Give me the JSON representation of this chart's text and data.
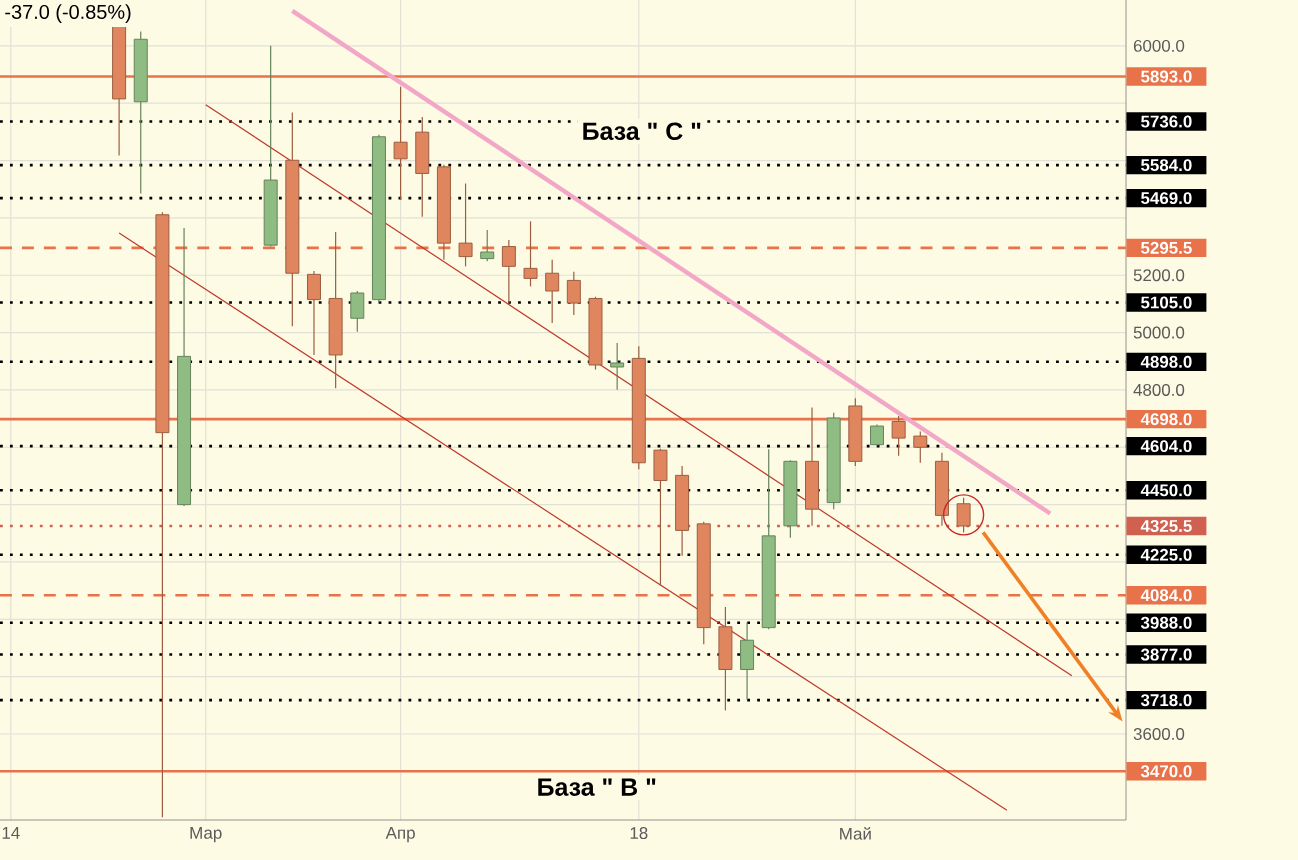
{
  "chart_data": {
    "type": "candlestick",
    "categories": [
      "14",
      null,
      null,
      null,
      null,
      null,
      null,
      null,
      null,
      "Мар",
      null,
      null,
      null,
      null,
      null,
      null,
      null,
      null,
      "Апр",
      null,
      null,
      null,
      null,
      null,
      null,
      null,
      null,
      null,
      null,
      "18",
      null,
      null,
      null,
      null,
      null,
      null,
      null,
      null,
      null,
      "Май",
      null,
      null,
      null,
      null,
      null,
      null,
      null,
      null,
      null,
      null,
      null,
      null
    ],
    "ohlc": [
      null,
      null,
      null,
      null,
      null,
      [
        6150,
        6150,
        5618,
        5815
      ],
      [
        5805,
        6050,
        5485,
        6023
      ],
      [
        5411,
        5420,
        3310,
        4651
      ],
      [
        4400,
        5365,
        4395,
        4917
      ],
      null,
      null,
      null,
      [
        5305,
        6000,
        5300,
        5532
      ],
      [
        5601,
        5768,
        5022,
        5207
      ],
      [
        5203,
        5215,
        4922,
        5115
      ],
      [
        5119,
        5351,
        4806,
        4922
      ],
      [
        5050,
        5145,
        5003,
        5138
      ],
      [
        5115,
        5690,
        5105,
        5683
      ],
      [
        5664,
        5857,
        5462,
        5606
      ],
      [
        5699,
        5752,
        5404,
        5555
      ],
      [
        5578,
        5585,
        5254,
        5312
      ],
      [
        5312,
        5520,
        5231,
        5265
      ],
      [
        5258,
        5358,
        5249,
        5281
      ],
      [
        5300,
        5323,
        5103,
        5231
      ],
      [
        5224,
        5388,
        5161,
        5189
      ],
      [
        5207,
        5254,
        5033,
        5145
      ],
      [
        5182,
        5212,
        5061,
        5103
      ],
      [
        5119,
        5125,
        4871,
        4887
      ],
      [
        4880,
        4964,
        4801,
        4894
      ],
      [
        4910,
        4952,
        4523,
        4546
      ],
      [
        4590,
        4595,
        4117,
        4484
      ],
      [
        4502,
        4535,
        4222,
        4310
      ],
      [
        4333,
        4340,
        3913,
        3971
      ],
      [
        3974,
        4043,
        3682,
        3825
      ],
      [
        3825,
        3990,
        3719,
        3927
      ],
      [
        3971,
        4593,
        3965,
        4291
      ],
      [
        4326,
        4555,
        4284,
        4551
      ],
      [
        4551,
        4739,
        4326,
        4384
      ],
      [
        4407,
        4720,
        4384,
        4702
      ],
      [
        4744,
        4771,
        4535,
        4551
      ],
      [
        4609,
        4679,
        4605,
        4674
      ],
      [
        4690,
        4709,
        4570,
        4632
      ],
      [
        4639,
        4655,
        4546,
        4600
      ],
      [
        4551,
        4581,
        4326,
        4362.5
      ],
      [
        4403,
        4424,
        4303,
        4325.5
      ],
      null,
      null,
      null,
      null,
      null,
      null,
      null
    ],
    "colors": [
      null,
      null,
      null,
      null,
      null,
      "#e0865e",
      "#8fbc82",
      "#e0865e",
      "#8fbc82",
      null,
      null,
      null,
      "#8fbc82",
      "#e0865e",
      "#e0865e",
      "#e0865e",
      "#8fbc82",
      "#8fbc82",
      "#e0865e",
      "#e0865e",
      "#e0865e",
      "#e0865e",
      "#8fbc82",
      "#e0865e",
      "#e0865e",
      "#e0865e",
      "#e0865e",
      "#e0865e",
      "#8fbc82",
      "#e0865e",
      "#e0865e",
      "#e0865e",
      "#e0865e",
      "#e0865e",
      "#8fbc82",
      "#8fbc82",
      "#8fbc82",
      "#e0865e",
      "#8fbc82",
      "#e0865e",
      "#8fbc82",
      "#e0865e",
      "#e0865e",
      "#e0865e",
      "#e0865e",
      null,
      null,
      null,
      null,
      null,
      null,
      null
    ],
    "series": [
      {
        "type": "line",
        "values": [
          null,
          null,
          null,
          null,
          null,
          null,
          null,
          null,
          null,
          null,
          null,
          null,
          null,
          6122,
          null,
          null,
          null,
          null,
          null,
          null,
          null,
          null,
          null,
          null,
          null,
          null,
          null,
          null,
          null,
          null,
          null,
          null,
          null,
          null,
          null,
          null,
          null,
          null,
          null,
          null,
          null,
          null,
          null,
          null,
          null,
          null,
          null,
          null,
          4369,
          null,
          null,
          null
        ],
        "color": "#f2a7c6"
      },
      {
        "type": "line",
        "values": [
          null,
          null,
          null,
          null,
          null,
          null,
          null,
          null,
          null,
          5795,
          null,
          null,
          null,
          null,
          null,
          null,
          null,
          null,
          null,
          null,
          null,
          null,
          null,
          null,
          null,
          null,
          null,
          null,
          null,
          null,
          null,
          null,
          null,
          null,
          null,
          null,
          null,
          null,
          null,
          null,
          null,
          null,
          null,
          null,
          null,
          null,
          null,
          null,
          null,
          3803,
          null,
          null
        ],
        "color": "#c0392b"
      },
      {
        "type": "line",
        "values": [
          null,
          null,
          null,
          null,
          null,
          5347,
          null,
          null,
          null,
          null,
          null,
          null,
          null,
          null,
          null,
          null,
          null,
          null,
          null,
          null,
          null,
          null,
          null,
          null,
          null,
          null,
          null,
          null,
          null,
          null,
          null,
          null,
          null,
          null,
          null,
          null,
          null,
          null,
          null,
          null,
          null,
          null,
          null,
          null,
          null,
          null,
          3334,
          null,
          null,
          null,
          null,
          null
        ],
        "color": "#c0392b"
      }
    ],
    "ylim": [
      3300,
      6160
    ],
    "yticks": [
      {
        "value": 3600,
        "label": "3600.0"
      },
      {
        "value": 3800,
        "label": null
      },
      {
        "value": 4000,
        "label": null
      },
      {
        "value": 4200,
        "label": null
      },
      {
        "value": 4400,
        "label": null
      },
      {
        "value": 4600,
        "label": null
      },
      {
        "value": 4800,
        "label": "4800.0"
      },
      {
        "value": 5000,
        "label": "5000.0"
      },
      {
        "value": 5200,
        "label": "5200.0"
      },
      {
        "value": 5400,
        "label": null
      },
      {
        "value": 5600,
        "label": null
      },
      {
        "value": 5800,
        "label": null
      },
      {
        "value": 6000,
        "label": "6000.0"
      }
    ],
    "grid": true,
    "ref_lines": [
      {
        "axis": "y",
        "value": 5893,
        "label": "5893.0",
        "color": "#e8734a",
        "line_style": "solid"
      },
      {
        "axis": "y",
        "value": 5736,
        "label": "5736.0",
        "color": "#000000",
        "line_style": "dotted"
      },
      {
        "axis": "y",
        "value": 5584,
        "label": "5584.0",
        "color": "#000000",
        "line_style": "dotted"
      },
      {
        "axis": "y",
        "value": 5469,
        "label": "5469.0",
        "color": "#000000",
        "line_style": "dotted"
      },
      {
        "axis": "y",
        "value": 5295.5,
        "label": "5295.5",
        "color": "#e8734a",
        "line_style": "dashed"
      },
      {
        "axis": "y",
        "value": 5105,
        "label": "5105.0",
        "color": "#000000",
        "line_style": "dotted"
      },
      {
        "axis": "y",
        "value": 4898,
        "label": "4898.0",
        "color": "#000000",
        "line_style": "dotted"
      },
      {
        "axis": "y",
        "value": 4698,
        "label": "4698.0",
        "color": "#e8734a",
        "line_style": "solid"
      },
      {
        "axis": "y",
        "value": 4604,
        "label": "4604.0",
        "color": "#000000",
        "line_style": "dotted"
      },
      {
        "axis": "y",
        "value": 4450,
        "label": "4450.0",
        "color": "#000000",
        "line_style": "dotted"
      },
      {
        "axis": "y",
        "value": 4325.5,
        "label": "4325.5",
        "color": "#d0604f",
        "line_style": "dotted"
      },
      {
        "axis": "y",
        "value": 4225,
        "label": "4225.0",
        "color": "#000000",
        "line_style": "dotted"
      },
      {
        "axis": "y",
        "value": 4084,
        "label": "4084.0",
        "color": "#e8734a",
        "line_style": "dashed"
      },
      {
        "axis": "y",
        "value": 3988,
        "label": "3988.0",
        "color": "#000000",
        "line_style": "dotted"
      },
      {
        "axis": "y",
        "value": 3877,
        "label": "3877.0",
        "color": "#000000",
        "line_style": "dotted"
      },
      {
        "axis": "y",
        "value": 3718,
        "label": "3718.0",
        "color": "#000000",
        "line_style": "dotted"
      },
      {
        "axis": "y",
        "value": 3470,
        "label": "3470.0",
        "color": "#e8734a",
        "line_style": "solid"
      }
    ],
    "annotations": [
      "-37.0 (-0.85%)",
      "База \" C \"",
      "База \" B \""
    ]
  }
}
